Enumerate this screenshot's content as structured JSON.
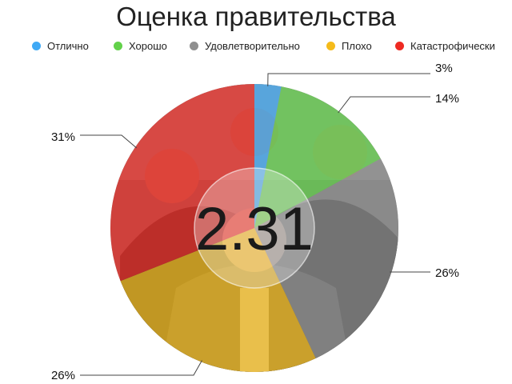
{
  "chart_data": {
    "type": "pie",
    "title": "Оценка правительства",
    "center_value": "2.31",
    "legend_position": "top",
    "categories": [
      "Отлично",
      "Хорошо",
      "Удовлетворительно",
      "Плохо",
      "Катастрофически"
    ],
    "values": [
      3,
      14,
      26,
      26,
      31
    ],
    "data_labels": [
      "3%",
      "14%",
      "26%",
      "26%",
      "31%"
    ],
    "colors": [
      "#3fa9f5",
      "#62d14a",
      "#8f8f8f",
      "#f5bb1a",
      "#ee2a22"
    ]
  }
}
